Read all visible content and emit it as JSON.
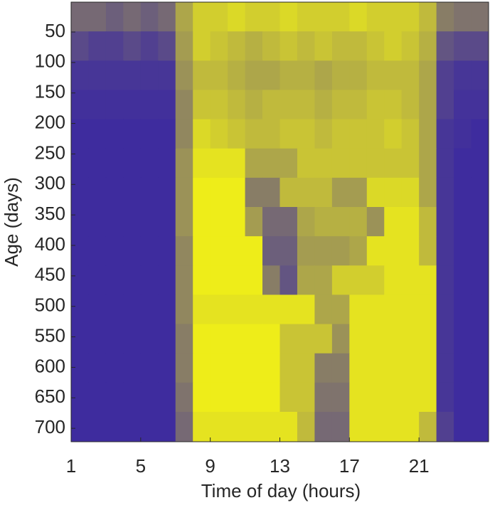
{
  "chart_data": {
    "type": "heatmap",
    "xlabel": "Time of day (hours)",
    "ylabel": "Age (days)",
    "xlim": [
      1,
      25
    ],
    "ylim": [
      1,
      722
    ],
    "xticks": [
      1,
      5,
      9,
      13,
      17,
      21
    ],
    "yticks": [
      50,
      100,
      150,
      200,
      250,
      300,
      350,
      400,
      450,
      500,
      550,
      600,
      650,
      700
    ],
    "y_reversed": true,
    "colormap": [
      "#3e2c9e",
      "#f7f712"
    ],
    "xbins": [
      1,
      2,
      3,
      4,
      5,
      6,
      7,
      8,
      9,
      10,
      11,
      12,
      13,
      14,
      15,
      16,
      17,
      18,
      19,
      20,
      21,
      22,
      23,
      24,
      25
    ],
    "ybins": [
      1,
      49,
      97,
      145,
      193,
      241,
      289,
      337,
      385,
      433,
      481,
      529,
      577,
      625,
      673,
      721
    ],
    "values": [
      [
        0.3,
        0.3,
        0.25,
        0.3,
        0.25,
        0.3,
        0.6,
        0.8,
        0.8,
        0.85,
        0.8,
        0.8,
        0.85,
        0.8,
        0.8,
        0.8,
        0.85,
        0.8,
        0.8,
        0.8,
        0.7,
        0.4,
        0.35,
        0.35
      ],
      [
        0.15,
        0.1,
        0.1,
        0.15,
        0.1,
        0.15,
        0.55,
        0.8,
        0.75,
        0.7,
        0.65,
        0.7,
        0.75,
        0.7,
        0.75,
        0.7,
        0.7,
        0.75,
        0.8,
        0.75,
        0.65,
        0.2,
        0.15,
        0.15
      ],
      [
        0.05,
        0.05,
        0.05,
        0.05,
        0.05,
        0.05,
        0.5,
        0.7,
        0.7,
        0.65,
        0.6,
        0.6,
        0.65,
        0.65,
        0.6,
        0.65,
        0.65,
        0.7,
        0.7,
        0.7,
        0.6,
        0.1,
        0.05,
        0.05
      ],
      [
        0.02,
        0.02,
        0.02,
        0.02,
        0.02,
        0.02,
        0.45,
        0.75,
        0.75,
        0.7,
        0.65,
        0.7,
        0.7,
        0.7,
        0.65,
        0.7,
        0.7,
        0.75,
        0.75,
        0.7,
        0.6,
        0.1,
        0.03,
        0.03
      ],
      [
        0.0,
        0.0,
        0.0,
        0.0,
        0.0,
        0.0,
        0.45,
        0.85,
        0.8,
        0.75,
        0.7,
        0.7,
        0.75,
        0.75,
        0.7,
        0.75,
        0.75,
        0.75,
        0.8,
        0.75,
        0.6,
        0.05,
        0.02,
        0.0
      ],
      [
        0.0,
        0.0,
        0.0,
        0.0,
        0.0,
        0.0,
        0.5,
        0.9,
        0.9,
        0.9,
        0.6,
        0.6,
        0.6,
        0.75,
        0.75,
        0.75,
        0.75,
        0.75,
        0.75,
        0.75,
        0.6,
        0.05,
        0.0,
        0.0
      ],
      [
        0.0,
        0.0,
        0.0,
        0.0,
        0.0,
        0.0,
        0.5,
        0.95,
        0.95,
        0.95,
        0.4,
        0.4,
        0.7,
        0.7,
        0.7,
        0.55,
        0.55,
        0.85,
        0.85,
        0.85,
        0.6,
        0.05,
        0.0,
        0.0
      ],
      [
        0.0,
        0.0,
        0.0,
        0.0,
        0.0,
        0.0,
        0.5,
        0.95,
        0.95,
        0.95,
        0.55,
        0.3,
        0.3,
        0.6,
        0.65,
        0.65,
        0.65,
        0.5,
        0.9,
        0.9,
        0.7,
        0.05,
        0.0,
        0.0
      ],
      [
        0.0,
        0.0,
        0.0,
        0.0,
        0.0,
        0.0,
        0.45,
        0.95,
        0.95,
        0.95,
        0.95,
        0.25,
        0.25,
        0.55,
        0.55,
        0.55,
        0.6,
        0.9,
        0.9,
        0.9,
        0.7,
        0.05,
        0.0,
        0.0
      ],
      [
        0.0,
        0.0,
        0.0,
        0.0,
        0.0,
        0.0,
        0.45,
        0.95,
        0.95,
        0.95,
        0.95,
        0.4,
        0.2,
        0.6,
        0.6,
        0.8,
        0.8,
        0.8,
        0.9,
        0.9,
        0.9,
        0.05,
        0.0,
        0.0
      ],
      [
        0.0,
        0.0,
        0.0,
        0.0,
        0.0,
        0.0,
        0.45,
        0.9,
        0.9,
        0.9,
        0.9,
        0.9,
        0.9,
        0.9,
        0.6,
        0.6,
        0.9,
        0.9,
        0.9,
        0.9,
        0.9,
        0.05,
        0.0,
        0.0
      ],
      [
        0.0,
        0.0,
        0.0,
        0.0,
        0.0,
        0.0,
        0.4,
        0.95,
        0.95,
        0.95,
        0.95,
        0.95,
        0.75,
        0.75,
        0.75,
        0.5,
        0.9,
        0.9,
        0.9,
        0.9,
        0.9,
        0.05,
        0.0,
        0.0
      ],
      [
        0.0,
        0.0,
        0.0,
        0.0,
        0.0,
        0.0,
        0.4,
        0.95,
        0.95,
        0.95,
        0.95,
        0.95,
        0.75,
        0.75,
        0.4,
        0.4,
        0.9,
        0.9,
        0.9,
        0.9,
        0.9,
        0.05,
        0.0,
        0.0
      ],
      [
        0.0,
        0.0,
        0.0,
        0.0,
        0.0,
        0.0,
        0.35,
        0.95,
        0.95,
        0.95,
        0.95,
        0.95,
        0.75,
        0.75,
        0.35,
        0.35,
        0.9,
        0.9,
        0.9,
        0.9,
        0.9,
        0.05,
        0.0,
        0.0
      ],
      [
        0.0,
        0.0,
        0.0,
        0.0,
        0.0,
        0.0,
        0.3,
        0.9,
        0.9,
        0.9,
        0.9,
        0.9,
        0.9,
        0.7,
        0.3,
        0.3,
        0.9,
        0.9,
        0.9,
        0.9,
        0.7,
        0.1,
        0.0,
        0.0
      ]
    ]
  }
}
